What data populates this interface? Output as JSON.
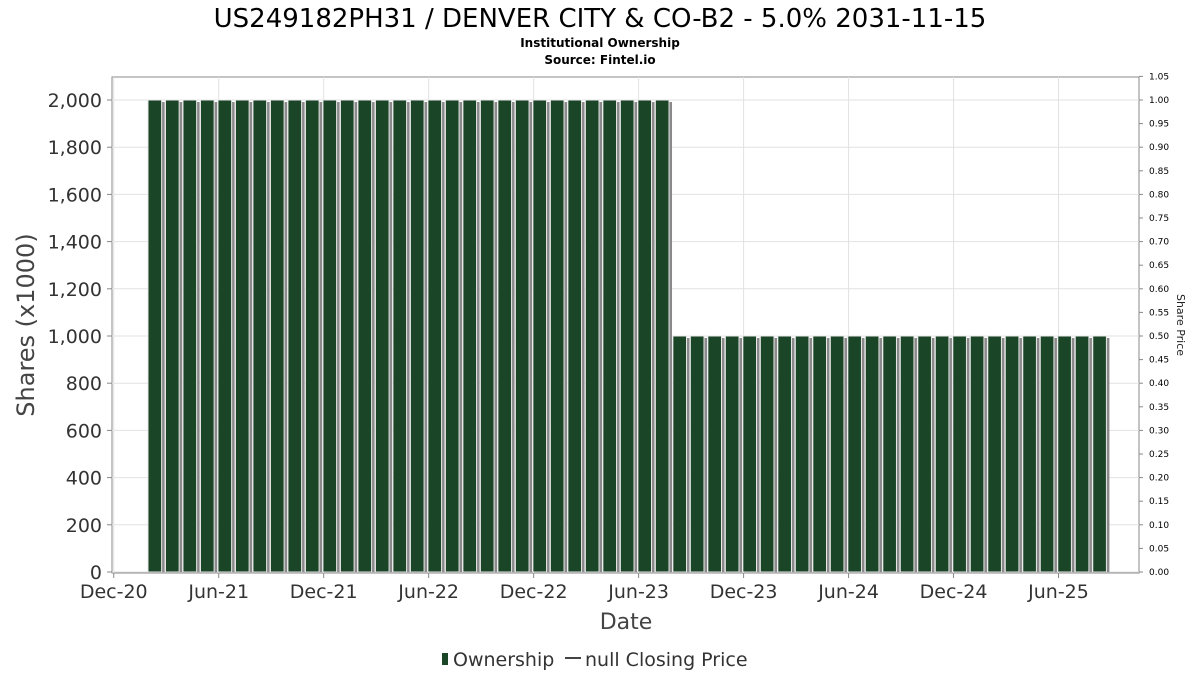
{
  "chart_data": {
    "type": "bar",
    "title": "US249182PH31 / DENVER CITY & CO-B2 - 5.0% 2031-11-15",
    "subtitle": "Institutional Ownership",
    "source": "Source: Fintel.io",
    "xlabel": "Date",
    "ylabel": "Shares (x1000)",
    "ylabel_right": "Share Price",
    "ylim": [
      0,
      2100
    ],
    "ylim_right": [
      0,
      1.05
    ],
    "y_ticks": [
      "0",
      "200",
      "400",
      "600",
      "800",
      "1,000",
      "1,200",
      "1,400",
      "1,600",
      "1,800",
      "2,000"
    ],
    "y_ticks_right": [
      "0.00",
      "0.05",
      "0.10",
      "0.15",
      "0.20",
      "0.25",
      "0.30",
      "0.35",
      "0.40",
      "0.45",
      "0.50",
      "0.55",
      "0.60",
      "0.65",
      "0.70",
      "0.75",
      "0.80",
      "0.85",
      "0.90",
      "0.95",
      "1.00",
      "1.05"
    ],
    "x_ticks": [
      {
        "label": "Dec-20",
        "month": 0
      },
      {
        "label": "Jun-21",
        "month": 6
      },
      {
        "label": "Dec-21",
        "month": 12
      },
      {
        "label": "Jun-22",
        "month": 18
      },
      {
        "label": "Dec-22",
        "month": 24
      },
      {
        "label": "Jun-23",
        "month": 30
      },
      {
        "label": "Dec-23",
        "month": 36
      },
      {
        "label": "Jun-24",
        "month": 42
      },
      {
        "label": "Dec-24",
        "month": 48
      },
      {
        "label": "Jun-25",
        "month": 54
      }
    ],
    "x_range_months": [
      -0.1,
      58.6
    ],
    "grid": true,
    "legend_position": "bottom-center",
    "series": [
      {
        "name": "Ownership",
        "color": "#1a4527",
        "bar_start_month": 2.4,
        "bar_step_months": 1,
        "values": [
          2000,
          2000,
          2000,
          2000,
          2000,
          2000,
          2000,
          2000,
          2000,
          2000,
          2000,
          2000,
          2000,
          2000,
          2000,
          2000,
          2000,
          2000,
          2000,
          2000,
          2000,
          2000,
          2000,
          2000,
          2000,
          2000,
          2000,
          2000,
          2000,
          2000,
          1000,
          1000,
          1000,
          1000,
          1000,
          1000,
          1000,
          1000,
          1000,
          1000,
          1000,
          1000,
          1000,
          1000,
          1000,
          1000,
          1000,
          1000,
          1000,
          1000,
          1000,
          1000,
          1000,
          1000,
          1000
        ]
      },
      {
        "name": "null Closing Price",
        "color": "#444444",
        "values": []
      }
    ]
  }
}
